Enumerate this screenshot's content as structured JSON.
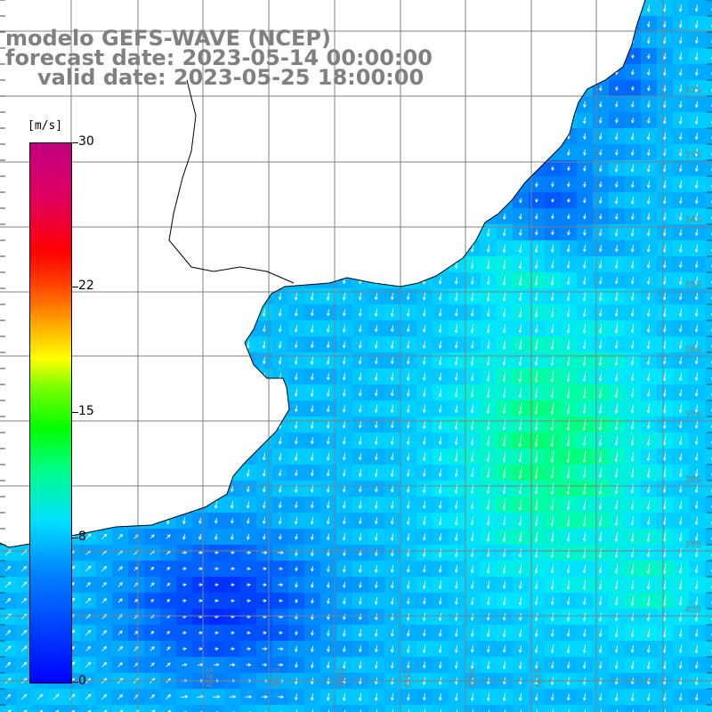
{
  "title": {
    "line1": "modelo GEFS-WAVE (NCEP)",
    "line2": "forecast date: 2023-05-14 00:00:00",
    "line3": "valid date: 2023-05-25 18:00:00"
  },
  "colorbar": {
    "unit": "[m/s]",
    "ticks": [
      {
        "label": "30",
        "value": 30
      },
      {
        "label": "22",
        "value": 22
      },
      {
        "label": "15",
        "value": 15
      },
      {
        "label": "8",
        "value": 8
      },
      {
        "label": "0",
        "value": 0
      }
    ],
    "min": 0,
    "max": 30
  },
  "map": {
    "lat_labels": [
      "32S",
      "33S",
      "34S",
      "35S",
      "36S",
      "37S",
      "38S",
      "39S",
      "40S"
    ],
    "lon_labels": [
      "58W",
      "57W",
      "56W",
      "55W",
      "54W",
      "53W"
    ],
    "colors": {
      "land": "#ffffff",
      "grid": "#808080",
      "coast": "#000000",
      "arrow": "#ffffff"
    }
  }
}
